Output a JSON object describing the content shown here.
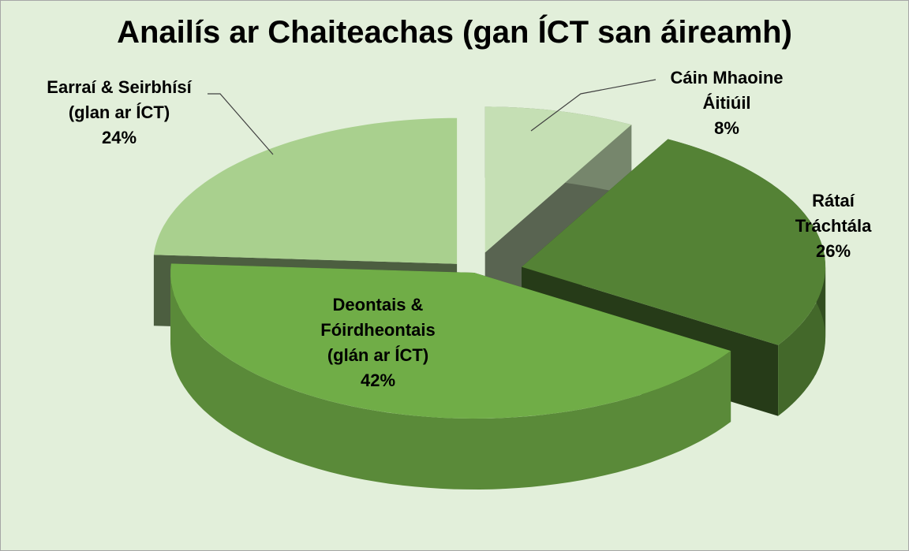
{
  "chart_data": {
    "type": "pie3d",
    "title": "Anailís ar Chaiteachas (gan ÍCT san áireamh)",
    "categories": [
      "Cáin Mhaoine\nÁitiúil",
      "Rátaí Tráchtála",
      "Deontais &\nFóirdheontais\n(glán ar ÍCT)",
      "Earraí & Seirbhísí\n(glan ar ÍCT)"
    ],
    "values": [
      8,
      26,
      42,
      24
    ],
    "value_labels": [
      "8%",
      "26%",
      "42%",
      "24%"
    ],
    "colors": [
      "#c5dfb4",
      "#548235",
      "#70ad47",
      "#a9d08e"
    ]
  }
}
